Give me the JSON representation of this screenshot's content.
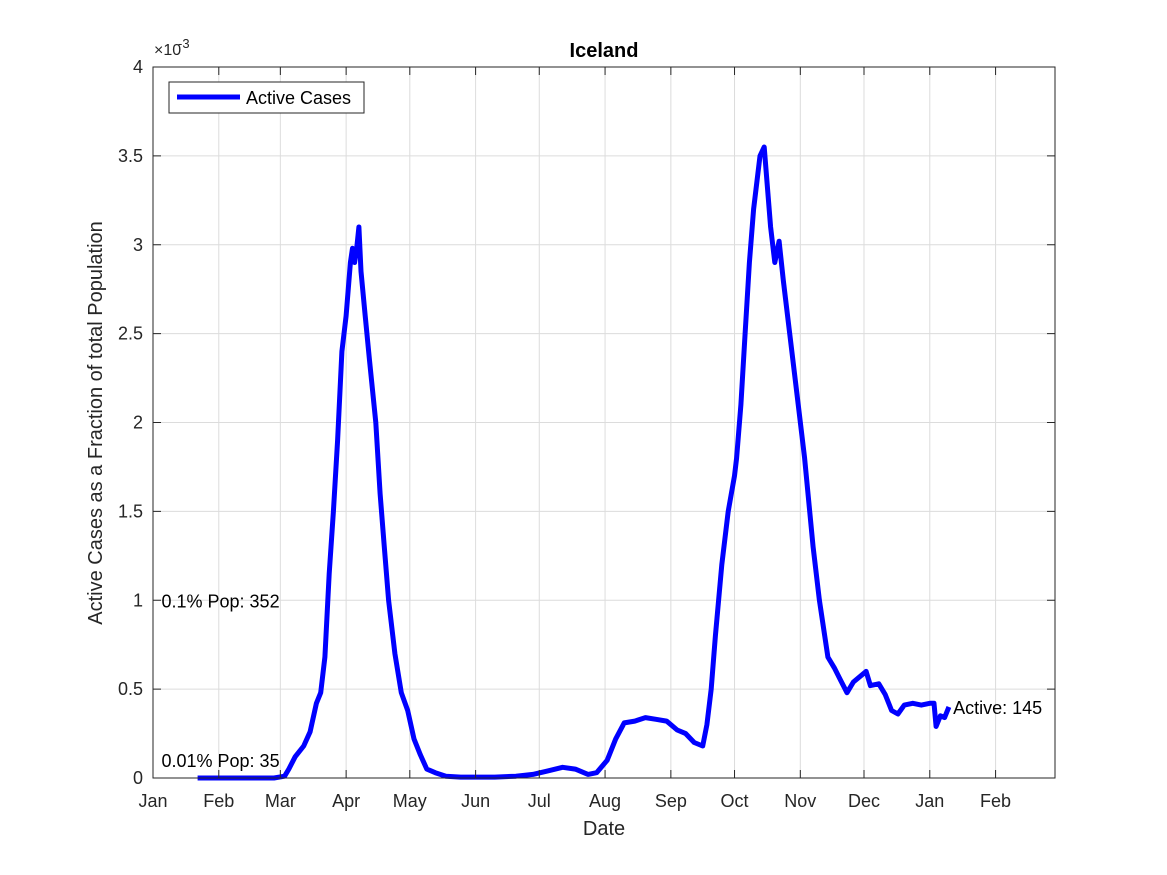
{
  "chart_data": {
    "type": "line",
    "title": "Iceland",
    "xlabel": "Date",
    "ylabel": "Active Cases as a Fraction of total Population",
    "y_exponent_label": "×10",
    "y_exponent_power": "-3",
    "y_scale_factor": 0.001,
    "ylim": [
      0,
      0.004
    ],
    "y_ticks": [
      0,
      0.0005,
      0.001,
      0.0015,
      0.002,
      0.0025,
      0.003,
      0.0035,
      0.004
    ],
    "y_tick_labels": [
      "0",
      "0.5",
      "1",
      "1.5",
      "2",
      "2.5",
      "3",
      "3.5",
      "4"
    ],
    "xlim": [
      "2020-01-01",
      "2021-03-01"
    ],
    "x_ticks": [
      "2020-01-01",
      "2020-02-01",
      "2020-03-01",
      "2020-04-01",
      "2020-05-01",
      "2020-06-01",
      "2020-07-01",
      "2020-08-01",
      "2020-09-01",
      "2020-10-01",
      "2020-11-01",
      "2020-12-01",
      "2021-01-01",
      "2021-02-01"
    ],
    "x_tick_labels": [
      "Jan",
      "Feb",
      "Mar",
      "Apr",
      "May",
      "Jun",
      "Jul",
      "Aug",
      "Sep",
      "Oct",
      "Nov",
      "Dec",
      "Jan",
      "Feb"
    ],
    "grid": true,
    "legend": {
      "position": "top-left",
      "entries": [
        "Active Cases"
      ]
    },
    "series": [
      {
        "name": "Active Cases",
        "color": "#0000ff",
        "points": [
          [
            "2020-01-22",
            0
          ],
          [
            "2020-02-10",
            0
          ],
          [
            "2020-02-27",
            0
          ],
          [
            "2020-03-03",
            1e-05
          ],
          [
            "2020-03-05",
            5e-05
          ],
          [
            "2020-03-08",
            0.00012
          ],
          [
            "2020-03-12",
            0.00018
          ],
          [
            "2020-03-15",
            0.00026
          ],
          [
            "2020-03-18",
            0.00042
          ],
          [
            "2020-03-20",
            0.00048
          ],
          [
            "2020-03-22",
            0.00068
          ],
          [
            "2020-03-24",
            0.00115
          ],
          [
            "2020-03-26",
            0.0015
          ],
          [
            "2020-03-28",
            0.0019
          ],
          [
            "2020-03-30",
            0.0024
          ],
          [
            "2020-04-01",
            0.0026
          ],
          [
            "2020-04-03",
            0.0029
          ],
          [
            "2020-04-04",
            0.00298
          ],
          [
            "2020-04-05",
            0.0029
          ],
          [
            "2020-04-06",
            0.00298
          ],
          [
            "2020-04-07",
            0.0031
          ],
          [
            "2020-04-08",
            0.00285
          ],
          [
            "2020-04-10",
            0.0026
          ],
          [
            "2020-04-12",
            0.00235
          ],
          [
            "2020-04-15",
            0.002
          ],
          [
            "2020-04-17",
            0.0016
          ],
          [
            "2020-04-19",
            0.0013
          ],
          [
            "2020-04-21",
            0.001
          ],
          [
            "2020-04-24",
            0.0007
          ],
          [
            "2020-04-27",
            0.00048
          ],
          [
            "2020-04-30",
            0.00038
          ],
          [
            "2020-05-03",
            0.00022
          ],
          [
            "2020-05-06",
            0.00013
          ],
          [
            "2020-05-09",
            5e-05
          ],
          [
            "2020-05-13",
            3e-05
          ],
          [
            "2020-05-18",
            1e-05
          ],
          [
            "2020-05-25",
            5e-06
          ],
          [
            "2020-06-01",
            5e-06
          ],
          [
            "2020-06-10",
            5e-06
          ],
          [
            "2020-06-20",
            1e-05
          ],
          [
            "2020-06-28",
            2e-05
          ],
          [
            "2020-07-05",
            4e-05
          ],
          [
            "2020-07-12",
            6e-05
          ],
          [
            "2020-07-18",
            5e-05
          ],
          [
            "2020-07-24",
            2e-05
          ],
          [
            "2020-07-28",
            3e-05
          ],
          [
            "2020-08-02",
            0.0001
          ],
          [
            "2020-08-06",
            0.00022
          ],
          [
            "2020-08-10",
            0.00031
          ],
          [
            "2020-08-15",
            0.00032
          ],
          [
            "2020-08-20",
            0.00034
          ],
          [
            "2020-08-25",
            0.00033
          ],
          [
            "2020-08-30",
            0.00032
          ],
          [
            "2020-09-04",
            0.00027
          ],
          [
            "2020-09-08",
            0.00025
          ],
          [
            "2020-09-12",
            0.0002
          ],
          [
            "2020-09-16",
            0.00018
          ],
          [
            "2020-09-18",
            0.0003
          ],
          [
            "2020-09-20",
            0.0005
          ],
          [
            "2020-09-22",
            0.0008
          ],
          [
            "2020-09-25",
            0.0012
          ],
          [
            "2020-09-28",
            0.0015
          ],
          [
            "2020-10-01",
            0.0017
          ],
          [
            "2020-10-02",
            0.0018
          ],
          [
            "2020-10-04",
            0.0021
          ],
          [
            "2020-10-06",
            0.0025
          ],
          [
            "2020-10-08",
            0.0029
          ],
          [
            "2020-10-10",
            0.0032
          ],
          [
            "2020-10-13",
            0.0035
          ],
          [
            "2020-10-15",
            0.00355
          ],
          [
            "2020-10-18",
            0.0031
          ],
          [
            "2020-10-20",
            0.0029
          ],
          [
            "2020-10-22",
            0.00302
          ],
          [
            "2020-10-24",
            0.0028
          ],
          [
            "2020-10-27",
            0.0025
          ],
          [
            "2020-10-30",
            0.0022
          ],
          [
            "2020-11-03",
            0.0018
          ],
          [
            "2020-11-07",
            0.0013
          ],
          [
            "2020-11-10",
            0.001
          ],
          [
            "2020-11-14",
            0.00068
          ],
          [
            "2020-11-17",
            0.00062
          ],
          [
            "2020-11-20",
            0.00055
          ],
          [
            "2020-11-23",
            0.00048
          ],
          [
            "2020-11-26",
            0.00054
          ],
          [
            "2020-11-30",
            0.00058
          ],
          [
            "2020-12-02",
            0.0006
          ],
          [
            "2020-12-04",
            0.00052
          ],
          [
            "2020-12-08",
            0.00053
          ],
          [
            "2020-12-11",
            0.00047
          ],
          [
            "2020-12-14",
            0.00038
          ],
          [
            "2020-12-17",
            0.00036
          ],
          [
            "2020-12-20",
            0.00041
          ],
          [
            "2020-12-24",
            0.00042
          ],
          [
            "2020-12-28",
            0.00041
          ],
          [
            "2021-01-01",
            0.00042
          ],
          [
            "2021-01-03",
            0.00042
          ],
          [
            "2021-01-04",
            0.00029
          ],
          [
            "2021-01-06",
            0.00035
          ],
          [
            "2021-01-08",
            0.00034
          ],
          [
            "2021-01-10",
            0.0004
          ]
        ]
      }
    ],
    "annotations": [
      {
        "text": "0.1% Pop: 352",
        "x": "2020-01-05",
        "y": 0.001
      },
      {
        "text": "0.01% Pop: 35",
        "x": "2020-01-05",
        "y": 0.0001
      },
      {
        "text": "Active: 145",
        "x": "2021-01-12",
        "y": 0.0004
      }
    ]
  }
}
